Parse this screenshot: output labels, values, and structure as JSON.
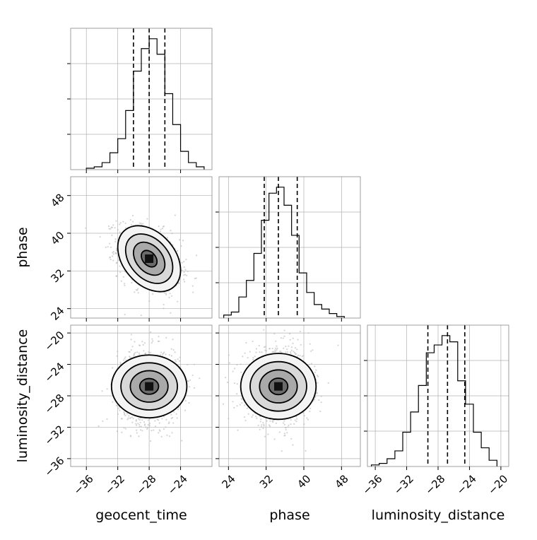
{
  "chart_data": {
    "type": "corner",
    "parameters": [
      {
        "key": "geocent_time",
        "label": "geocent_time",
        "range": [
          -38,
          -20
        ],
        "ticks": [
          -36,
          -32,
          -28,
          -24
        ],
        "tick_labels": [
          "−36",
          "−32",
          "−28",
          "−24"
        ],
        "median": -28.0,
        "q16": -30.0,
        "q84": -26.0
      },
      {
        "key": "phase",
        "label": "phase",
        "range": [
          22,
          52
        ],
        "ticks": [
          24,
          32,
          40,
          48
        ],
        "tick_labels": [
          "24",
          "32",
          "40",
          "48"
        ],
        "median": 34.6,
        "q16": 31.6,
        "q84": 38.6
      },
      {
        "key": "luminosity_distance",
        "label": "luminosity_distance",
        "range": [
          -37,
          -19
        ],
        "ticks": [
          -36,
          -32,
          -28,
          -24,
          -20
        ],
        "tick_labels": [
          "−36",
          "−32",
          "−28",
          "−24",
          "−20"
        ],
        "median": -26.8,
        "q16": -29.3,
        "q84": -24.6
      }
    ],
    "histograms": [
      {
        "param": "geocent_time",
        "bin_edges": [
          -36.0,
          -35.0,
          -34.0,
          -33.0,
          -32.0,
          -31.0,
          -30.0,
          -29.0,
          -28.0,
          -27.0,
          -26.0,
          -25.0,
          -24.0,
          -23.0,
          -22.0,
          -21.0
        ],
        "counts": [
          1,
          2,
          5,
          12,
          22,
          42,
          70,
          86,
          93,
          82,
          54,
          32,
          13,
          5,
          2
        ]
      },
      {
        "param": "phase",
        "bin_edges": [
          23.0,
          24.6,
          26.2,
          27.8,
          29.4,
          31.0,
          32.6,
          34.2,
          35.8,
          37.4,
          39.0,
          40.6,
          42.2,
          43.8,
          45.4,
          47.0,
          48.6
        ],
        "counts": [
          2,
          4,
          14,
          25,
          43,
          65,
          83,
          87,
          75,
          55,
          30,
          17,
          9,
          6,
          3,
          1
        ]
      },
      {
        "param": "luminosity_distance",
        "bin_edges": [
          -36.5,
          -35.5,
          -34.5,
          -33.5,
          -32.5,
          -31.5,
          -30.5,
          -29.5,
          -28.5,
          -27.5,
          -26.5,
          -25.5,
          -24.5,
          -23.5,
          -22.5,
          -21.5,
          -20.5
        ],
        "counts": [
          1,
          2,
          5,
          10,
          22,
          35,
          52,
          73,
          78,
          84,
          80,
          55,
          40,
          22,
          12,
          4
        ]
      }
    ],
    "pairs": [
      {
        "x": "geocent_time",
        "y": "phase",
        "mean": [
          -28.0,
          34.6
        ],
        "sd": [
          2.0,
          3.5
        ],
        "rho": -0.35
      },
      {
        "x": "geocent_time",
        "y": "luminosity_distance",
        "mean": [
          -28.0,
          -26.8
        ],
        "sd": [
          2.0,
          2.4
        ],
        "rho": 0.0
      },
      {
        "x": "phase",
        "y": "luminosity_distance",
        "mean": [
          34.6,
          -26.8
        ],
        "sd": [
          3.5,
          2.4
        ],
        "rho": 0.0
      }
    ],
    "contour_levels_sigma": [
      0.5,
      1.0,
      1.5,
      2.0
    ],
    "grid": true,
    "colors": {
      "contour": "#000000",
      "scatter": "#bdbdbd",
      "hist": "#000000",
      "grid": "#b0b0b0",
      "median_line": "#000000"
    }
  }
}
